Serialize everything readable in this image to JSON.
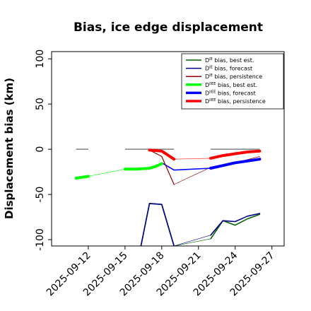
{
  "chart_data": {
    "type": "line",
    "title": "Bias, ice edge displacement",
    "xlabel": "",
    "ylabel": "Displacement bias (km)",
    "ylim": [
      -107,
      108
    ],
    "xlim": [
      "2025-09-09",
      "2025-09-28"
    ],
    "grid": false,
    "legend_position": "top-right",
    "x_ticks": [
      "2025-09-12",
      "2025-09-15",
      "2025-09-18",
      "2025-09-21",
      "2025-09-24",
      "2025-09-27"
    ],
    "x_tick_colors": [
      "#000000",
      "#000000",
      "#228b22",
      "#000000",
      "#000000",
      "#000000"
    ],
    "y_ticks": [
      100,
      50,
      0,
      -50,
      -100
    ],
    "zero_dash_segments": [
      [
        "2025-09-11",
        "2025-09-12"
      ],
      [
        "2025-09-15",
        "2025-09-19"
      ],
      [
        "2025-09-22",
        "2025-09-26"
      ]
    ],
    "series": [
      {
        "name": "D^IE bias, best est.",
        "legend_sup": "IE",
        "legend_rest": " bias, best est.",
        "color": "#006400",
        "width": 1.6,
        "points": [
          [
            "2025-09-16.3",
            -110
          ],
          [
            "2025-09-17",
            -60
          ],
          [
            "2025-09-18",
            -61
          ],
          [
            "2025-09-19",
            -110
          ],
          null,
          [
            "2025-09-22",
            -99
          ],
          [
            "2025-09-23",
            -79
          ],
          [
            "2025-09-24",
            -84
          ],
          [
            "2025-09-25",
            -77
          ],
          [
            "2025-09-26",
            -72
          ]
        ],
        "thin": [
          [
            "2025-09-19",
            -110
          ],
          [
            "2025-09-22",
            -99
          ]
        ]
      },
      {
        "name": "D^IE bias, forecast",
        "legend_sup": "IE",
        "legend_rest": " bias, forecast",
        "color": "#00008b",
        "width": 1.6,
        "points": [
          [
            "2025-09-16.3",
            -110
          ],
          [
            "2025-09-17",
            -60
          ],
          [
            "2025-09-18",
            -61
          ],
          [
            "2025-09-19",
            -110
          ],
          null,
          [
            "2025-09-22",
            -95
          ],
          [
            "2025-09-23",
            -79
          ],
          [
            "2025-09-24",
            -80
          ],
          [
            "2025-09-25",
            -74
          ],
          [
            "2025-09-26",
            -71
          ]
        ],
        "thin": [
          [
            "2025-09-19",
            -110
          ],
          [
            "2025-09-22",
            -95
          ]
        ]
      },
      {
        "name": "D^IE bias, persistence",
        "legend_sup": "IE",
        "legend_rest": " bias, persistence",
        "color": "#8b0000",
        "width": 1.2,
        "points": [
          [
            "2025-09-17",
            -1
          ],
          [
            "2025-09-18",
            -8
          ],
          [
            "2025-09-19",
            -39
          ]
        ],
        "thin": [
          [
            "2025-09-19",
            -39
          ],
          [
            "2025-09-22",
            -20
          ]
        ]
      },
      {
        "name": "D^IIEE bias, best est.",
        "legend_sup": "IIEE",
        "legend_rest": " bias, best est.",
        "color": "#00ff00",
        "width": 4,
        "points": [
          [
            "2025-09-11",
            -32
          ],
          [
            "2025-09-12",
            -30
          ],
          null,
          [
            "2025-09-15",
            -22
          ],
          [
            "2025-09-16",
            -22
          ],
          [
            "2025-09-17",
            -21
          ],
          [
            "2025-09-17.5",
            -19
          ],
          [
            "2025-09-18",
            -16
          ]
        ],
        "thin": [
          [
            "2025-09-12",
            -30
          ],
          [
            "2025-09-15",
            -22
          ]
        ]
      },
      {
        "name": "D^IIEE bias, forecast",
        "legend_sup": "IIEE",
        "legend_rest": " bias, forecast",
        "color": "#0000ff",
        "width": 4,
        "points": [
          [
            "2025-09-22",
            -21
          ],
          [
            "2025-09-23",
            -18
          ],
          [
            "2025-09-24",
            -15
          ],
          [
            "2025-09-25",
            -13
          ],
          [
            "2025-09-26",
            -11
          ]
        ],
        "points_thin": [
          [
            "2025-09-18",
            -15
          ],
          [
            "2025-09-19",
            -23
          ],
          [
            "2025-09-22",
            -21
          ]
        ]
      },
      {
        "name": "D^IIEE bias, persistence",
        "legend_sup": "IIEE",
        "legend_rest": " bias, persistence",
        "color": "#ff0000",
        "width": 4,
        "points": [
          [
            "2025-09-17",
            -1
          ],
          [
            "2025-09-18",
            -2
          ],
          [
            "2025-09-19",
            -11
          ],
          null,
          [
            "2025-09-22",
            -10
          ],
          [
            "2025-09-23",
            -7
          ],
          [
            "2025-09-24",
            -5
          ],
          [
            "2025-09-25",
            -3
          ],
          [
            "2025-09-26",
            -2
          ]
        ],
        "thin": [
          [
            "2025-09-19",
            -11
          ],
          [
            "2025-09-22",
            -10
          ]
        ]
      }
    ],
    "extra_thin_persistence": [
      [
        "2025-09-22",
        -20
      ],
      [
        "2025-09-24",
        -15
      ],
      [
        "2025-09-26",
        -8
      ]
    ]
  }
}
